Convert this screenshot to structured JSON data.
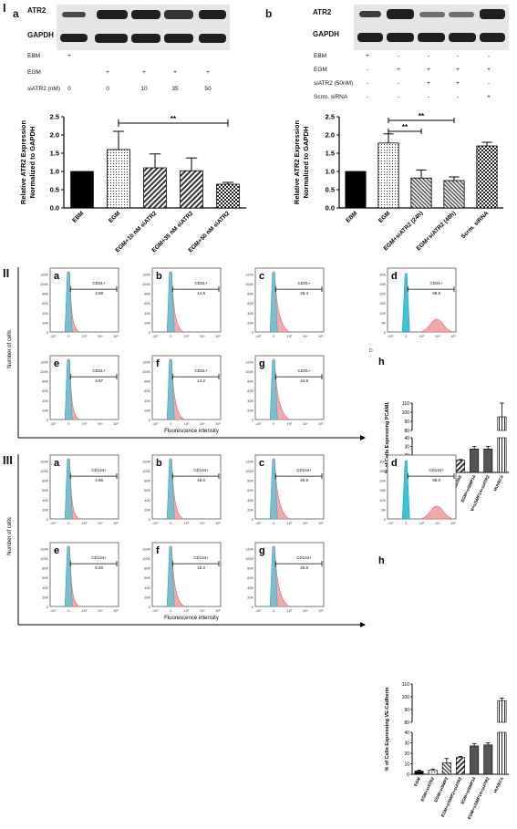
{
  "figure": {
    "sections": [
      "I",
      "II",
      "III"
    ],
    "section1": {
      "panel_a": {
        "label": "a",
        "blot_labels": [
          "ATR2",
          "GAPDH"
        ],
        "table": [
          {
            "label": "EBM",
            "values": [
              "+",
              "",
              "",
              "",
              ""
            ]
          },
          {
            "label": "EGM",
            "values": [
              "",
              "+",
              "+",
              "+",
              "+"
            ]
          },
          {
            "label": "siATR2 (nM)",
            "values": [
              "0",
              "0",
              "10",
              "35",
              "50"
            ]
          }
        ],
        "signif": "**"
      },
      "panel_b": {
        "label": "b",
        "blot_labels": [
          "ATR2",
          "GAPDH"
        ],
        "table": [
          {
            "label": "EBM",
            "values": [
              "+",
              "-",
              "-",
              "-",
              "-"
            ]
          },
          {
            "label": "EGM",
            "values": [
              "-",
              "+",
              "+",
              "+",
              "+"
            ]
          },
          {
            "label": "siATR2 (50nM)",
            "values": [
              "-",
              "-",
              "+",
              "+",
              "-"
            ]
          },
          {
            "label": "Scrm. siRNA",
            "values": [
              "-",
              "-",
              "-",
              "-",
              "+"
            ]
          }
        ],
        "signif": [
          "**",
          "**"
        ]
      }
    },
    "flow": {
      "sec2": {
        "row_labels": [
          "a",
          "b",
          "c",
          "d",
          "e",
          "f",
          "g"
        ],
        "marker": "CD31+",
        "pct": [
          "3.89",
          "14.5",
          "25.4",
          "98.9",
          "3.97",
          "14.2",
          "24.8"
        ],
        "extra_label": "D",
        "panel_h": "h"
      },
      "sec3": {
        "row_labels": [
          "a",
          "b",
          "c",
          "d",
          "e",
          "f",
          "g"
        ],
        "marker": "CD144+",
        "pct": [
          "4.65",
          "16.0",
          "26.9",
          "98.0",
          "5.00",
          "16.3",
          "26.8"
        ],
        "panel_h": "h"
      },
      "y_ticks": [
        "0",
        "20K",
        "40K",
        "60K",
        "80K",
        "100K",
        "120K"
      ],
      "y_ticks_d": [
        "0",
        "5K",
        "10K",
        "15K",
        "20K",
        "25K",
        "30K"
      ],
      "x_ticks": [
        "-10³",
        "0",
        "10³",
        "10⁴",
        "10⁵"
      ],
      "y_axis_label": "Number of cells",
      "x_axis_label": "Fluorescence intensity"
    }
  },
  "chart_data": [
    {
      "type": "bar",
      "panel": "I-a",
      "categories": [
        "EBM",
        "EGM",
        "EGM+10 nM siATR2",
        "EGM+35 nM siATR2",
        "EGM+50 nM siATR2"
      ],
      "values": [
        1.0,
        1.6,
        1.1,
        1.02,
        0.65
      ],
      "errors": [
        0,
        0.5,
        0.38,
        0.35,
        0.05
      ],
      "ylabel": "Relative ATR2 Expression\nNormalized to GAPDH",
      "yticks": [
        "0.0",
        "0.5",
        "1.0",
        "1.5",
        "2.0",
        "2.5"
      ],
      "ylim": [
        0,
        2.5
      ]
    },
    {
      "type": "bar",
      "panel": "I-b",
      "categories": [
        "EBM",
        "EGM",
        "EGM+siATR2 (24h)",
        "EGM+siATR2 (48h)",
        "Scrm. siRNA"
      ],
      "values": [
        1.0,
        1.78,
        0.82,
        0.75,
        1.7
      ],
      "errors": [
        0,
        0.25,
        0.22,
        0.1,
        0.1
      ],
      "ylabel": "Relative ATR2 Expression\nNormalized to GAPDH",
      "yticks": [
        "0.0",
        "0.5",
        "1.0",
        "1.5",
        "2.0",
        "2.5"
      ],
      "ylim": [
        0,
        2.5
      ]
    },
    {
      "type": "bar",
      "panel": "II-h",
      "categories": [
        "EGM",
        "EGM+siATR2",
        "EGM+siSMP2",
        "EGM+siSMP2+siATR2",
        "EGM+siSMP14",
        "EGM+siSMP14+siATR2",
        "HUVECs"
      ],
      "values": [
        3,
        4,
        14,
        14,
        27,
        27,
        95
      ],
      "errors": [
        1,
        1,
        2,
        1,
        3,
        3,
        15
      ],
      "ylabel": "% of Cells Expressing PCAM1",
      "yticks": [
        "0",
        "10",
        "20",
        "30",
        "40",
        "80",
        "90",
        "100",
        "110"
      ],
      "ylim": [
        0,
        110
      ]
    },
    {
      "type": "bar",
      "panel": "III-h",
      "categories": [
        "EGM",
        "EGM+siATR2",
        "EGM+siSMP2",
        "EGM+siSMP2+siATR2",
        "EGM+siSMP14",
        "EGM+siSMP14+siATR2",
        "HUVECs"
      ],
      "values": [
        3,
        4,
        11,
        16,
        27,
        28,
        97
      ],
      "errors": [
        1,
        1,
        4,
        1,
        2,
        2,
        2
      ],
      "ylabel": "% of Cells Expressing VE-Cadherin",
      "yticks": [
        "0",
        "10",
        "20",
        "30",
        "40",
        "80",
        "90",
        "100",
        "110"
      ],
      "ylim": [
        0,
        110
      ]
    }
  ]
}
